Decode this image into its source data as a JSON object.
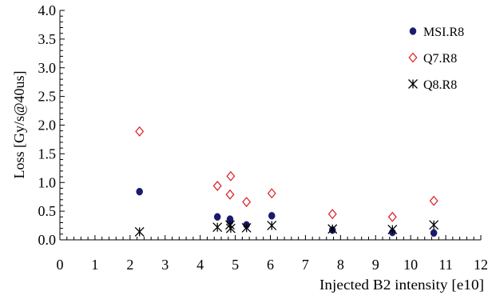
{
  "chart_data": {
    "type": "scatter",
    "title": "",
    "xlabel": "Injected B2 intensity [e10]",
    "ylabel": "Loss [Gy/s@40us]",
    "xlim": [
      0,
      12
    ],
    "ylim": [
      0,
      4
    ],
    "x_ticks": [
      "0",
      "1",
      "2",
      "3",
      "4",
      "5",
      "6",
      "7",
      "8",
      "9",
      "10",
      "11",
      "12"
    ],
    "y_ticks": [
      "0.0",
      "0.5",
      "1.0",
      "1.5",
      "2.0",
      "2.5",
      "3.0",
      "3.5",
      "4.0"
    ],
    "grid": false,
    "legend_position": "top-right",
    "series": [
      {
        "name": "MSI.R8",
        "marker": "filled-circle",
        "color": "#1a1a6e",
        "points": [
          {
            "x": 2.27,
            "y": 0.84
          },
          {
            "x": 4.49,
            "y": 0.4
          },
          {
            "x": 4.85,
            "y": 0.36
          },
          {
            "x": 4.85,
            "y": 0.32
          },
          {
            "x": 5.32,
            "y": 0.26
          },
          {
            "x": 6.04,
            "y": 0.42
          },
          {
            "x": 7.77,
            "y": 0.17
          },
          {
            "x": 9.48,
            "y": 0.13
          },
          {
            "x": 10.66,
            "y": 0.12
          }
        ]
      },
      {
        "name": "Q7.R8",
        "marker": "open-diamond",
        "color": "#e0191f",
        "points": [
          {
            "x": 2.27,
            "y": 1.89
          },
          {
            "x": 4.49,
            "y": 0.94
          },
          {
            "x": 4.87,
            "y": 1.11
          },
          {
            "x": 4.85,
            "y": 0.79
          },
          {
            "x": 5.32,
            "y": 0.66
          },
          {
            "x": 6.04,
            "y": 0.81
          },
          {
            "x": 7.77,
            "y": 0.45
          },
          {
            "x": 9.48,
            "y": 0.4
          },
          {
            "x": 10.66,
            "y": 0.68
          }
        ]
      },
      {
        "name": "Q8.R8",
        "marker": "asterisk",
        "color": "#000000",
        "points": [
          {
            "x": 2.27,
            "y": 0.14
          },
          {
            "x": 4.49,
            "y": 0.22
          },
          {
            "x": 4.85,
            "y": 0.26
          },
          {
            "x": 4.87,
            "y": 0.2
          },
          {
            "x": 5.32,
            "y": 0.21
          },
          {
            "x": 6.04,
            "y": 0.25
          },
          {
            "x": 7.77,
            "y": 0.19
          },
          {
            "x": 9.48,
            "y": 0.18
          },
          {
            "x": 10.66,
            "y": 0.26
          }
        ]
      }
    ]
  }
}
